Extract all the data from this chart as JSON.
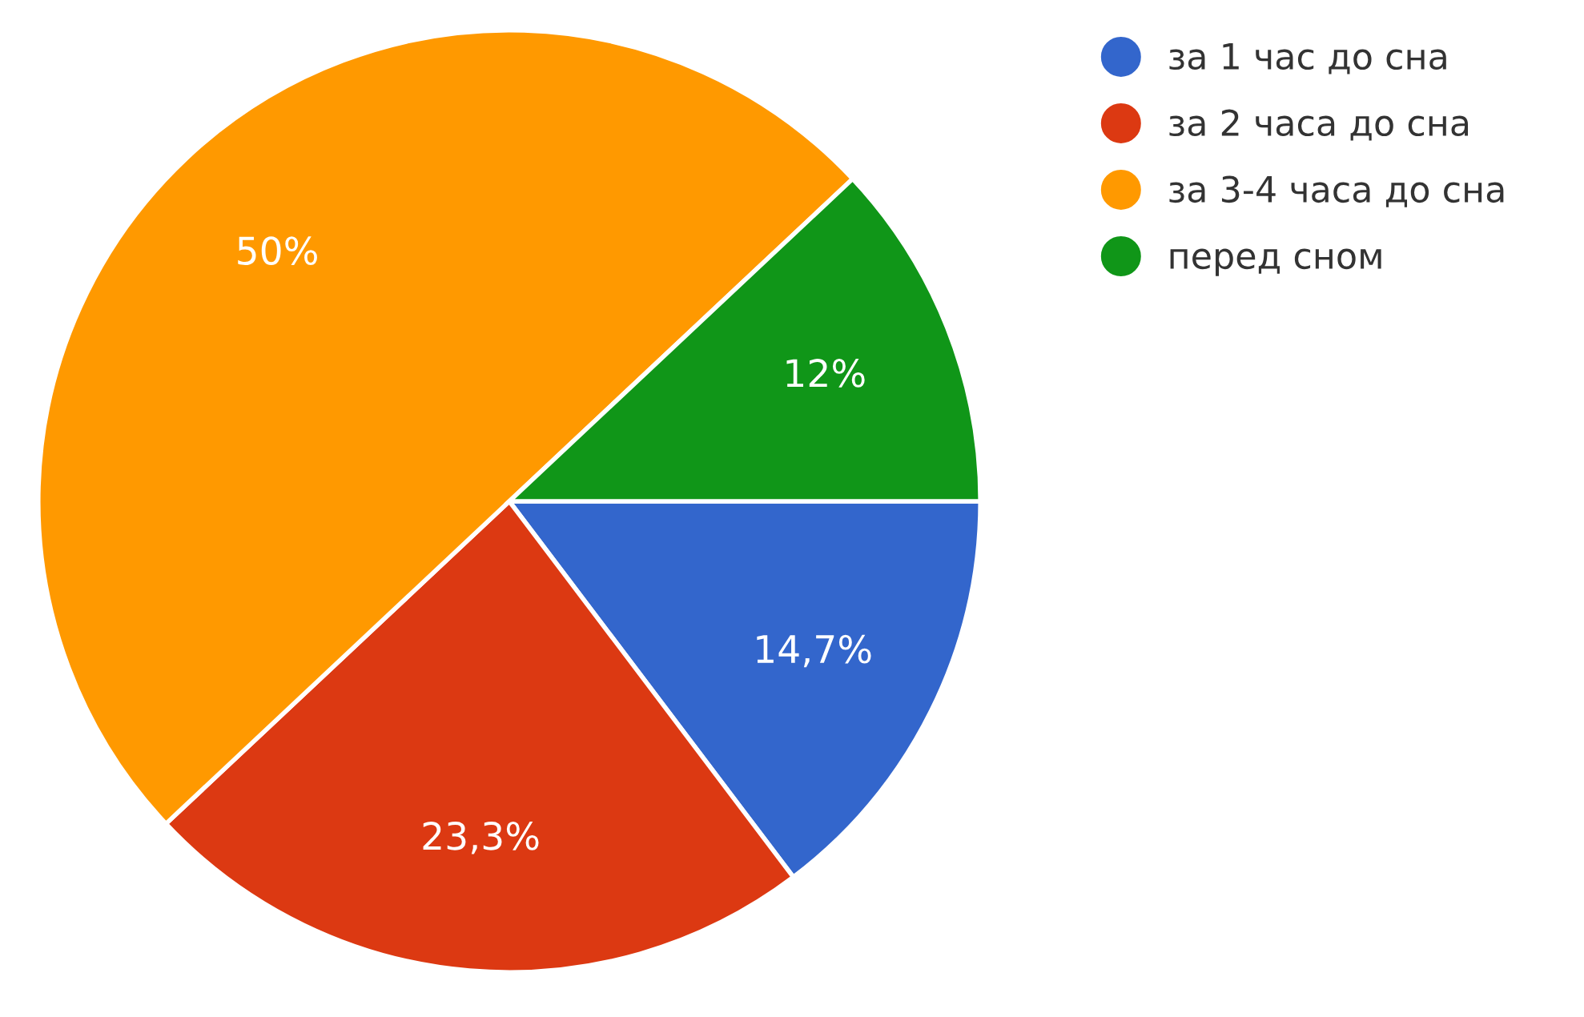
{
  "chart_data": {
    "type": "pie",
    "categories": [
      "за 1 час до сна",
      "за 2 часа до сна",
      "за 3-4 часа до сна",
      "перед сном"
    ],
    "values": [
      14.7,
      23.3,
      50,
      12
    ],
    "value_labels": [
      "14,7%",
      "23,3%",
      "50%",
      "12%"
    ],
    "colors": [
      "#3366cc",
      "#dc3912",
      "#ff9900",
      "#109618"
    ],
    "legend": "right"
  }
}
